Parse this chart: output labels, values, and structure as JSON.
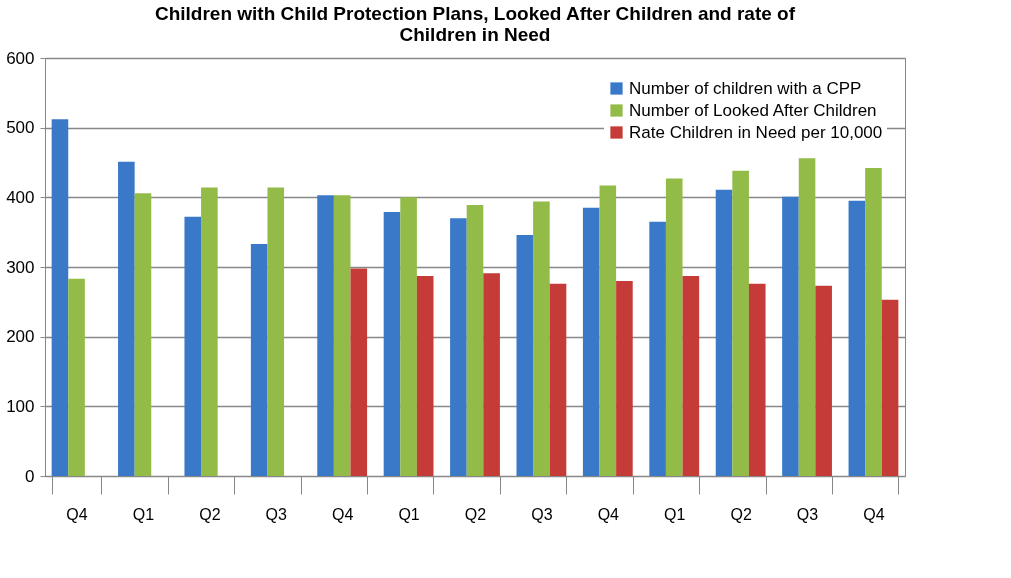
{
  "chart_data": {
    "type": "bar",
    "title": "Children with Child Protection Plans, Looked After Children and rate of Children in Need",
    "categories": [
      "Q4",
      "Q1",
      "Q2",
      "Q3",
      "Q4",
      "Q1",
      "Q2",
      "Q3",
      "Q4",
      "Q1",
      "Q2",
      "Q3",
      "Q4"
    ],
    "series": [
      {
        "name": "Number of children with a CPP",
        "color": "#3a78c8",
        "values": [
          512,
          451,
          372,
          333,
          403,
          379,
          370,
          346,
          385,
          365,
          411,
          401,
          395
        ]
      },
      {
        "name": "Number of Looked After Children",
        "color": "#92bb48",
        "values": [
          283,
          406,
          414,
          414,
          403,
          400,
          389,
          394,
          417,
          427,
          438,
          456,
          442
        ]
      },
      {
        "name": "Rate Children in Need per 10,000",
        "color": "#c43b37",
        "values": [
          null,
          null,
          null,
          null,
          298,
          287,
          291,
          276,
          280,
          287,
          276,
          273,
          253
        ]
      }
    ],
    "ylim": [
      0,
      600
    ],
    "yticks": [
      0,
      100,
      200,
      300,
      400,
      500,
      600
    ],
    "grid": "y",
    "legend": "top right"
  }
}
